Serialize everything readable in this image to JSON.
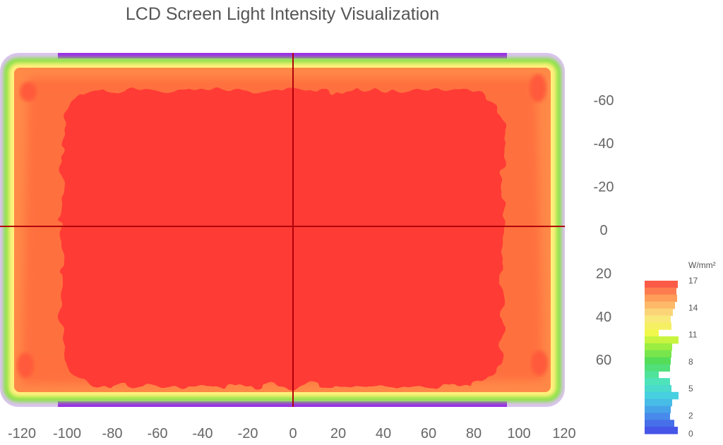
{
  "chart_data": {
    "type": "heatmap",
    "title": "LCD Screen Light Intensity Visualization",
    "xlabel": "",
    "ylabel": "",
    "xlim": [
      -125,
      125
    ],
    "ylim": [
      -80,
      80
    ],
    "y_axis_inverted": true,
    "y_axis_position": "right",
    "x_ticks": [
      -120,
      -100,
      -80,
      -60,
      -40,
      -20,
      0,
      20,
      40,
      60,
      80,
      100,
      120
    ],
    "y_ticks": [
      -60,
      -40,
      -20,
      0,
      20,
      40,
      60
    ],
    "crosshair": {
      "x": 0,
      "y": 0
    },
    "center_value": 17.5,
    "zones": [
      {
        "name": "edge",
        "value": 1.5,
        "color": "#b06be8"
      },
      {
        "name": "rim",
        "value": 9.5,
        "color": "#7ae34a"
      },
      {
        "name": "inner-rim",
        "value": 13.5,
        "color": "#fff27a"
      },
      {
        "name": "border",
        "value": 15.5,
        "color": "#ff8c4a"
      },
      {
        "name": "center",
        "value": 17.5,
        "color": "#ff3a36"
      }
    ],
    "colorbar": {
      "unit": "W/mm²",
      "range": [
        0,
        17
      ],
      "ticks": [
        "17",
        "14",
        "11",
        "8",
        "5",
        "2",
        "0"
      ]
    }
  }
}
